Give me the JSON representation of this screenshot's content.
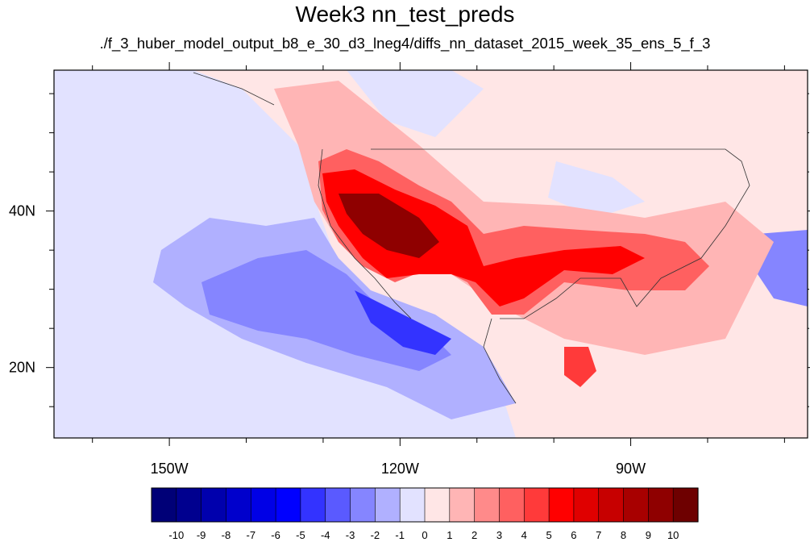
{
  "title": "Week3 nn_test_preds",
  "subtitle": "./f_3_huber_model_output_b8_e_30_d3_lneg4/diffs_nn_dataset_2015_week_35_ens_5_f_3",
  "map": {
    "lon_range": [
      -165,
      -67
    ],
    "lat_range": [
      11,
      58
    ],
    "lon_ticks": [
      {
        "value": -150,
        "label": "150W"
      },
      {
        "value": -120,
        "label": "120W"
      },
      {
        "value": -90,
        "label": "90W"
      }
    ],
    "lat_ticks": [
      {
        "value": 40,
        "label": "40N"
      },
      {
        "value": 20,
        "label": "20N"
      }
    ]
  },
  "colorbar": {
    "levels": [
      "-10",
      "-9",
      "-8",
      "-7",
      "-6",
      "-5",
      "-4",
      "-3",
      "-2",
      "-1",
      "0",
      "1",
      "2",
      "3",
      "4",
      "5",
      "6",
      "7",
      "8",
      "9",
      "10"
    ],
    "colors": [
      "#000077",
      "#00008f",
      "#0000ad",
      "#0000cc",
      "#0000e6",
      "#0000ff",
      "#3333ff",
      "#5a5aff",
      "#8585ff",
      "#b0b0ff",
      "#e2e2ff",
      "#ffe6e6",
      "#ffb5b5",
      "#ff8a8a",
      "#ff6060",
      "#ff3a3a",
      "#ff0000",
      "#e00000",
      "#c70000",
      "#a80000",
      "#8f0000",
      "#6e0000"
    ]
  },
  "anomaly_regions": {
    "background": "#ffe6e6",
    "weak_negative": "#e2e2ff",
    "negative": "#b0b0ff",
    "moderate_negative": "#8585ff",
    "strong_negative": "#3333ff",
    "weak_positive": "#ffb5b5",
    "positive": "#ff6060",
    "strong_positive": "#ff0000",
    "max_positive": "#8f0000"
  }
}
